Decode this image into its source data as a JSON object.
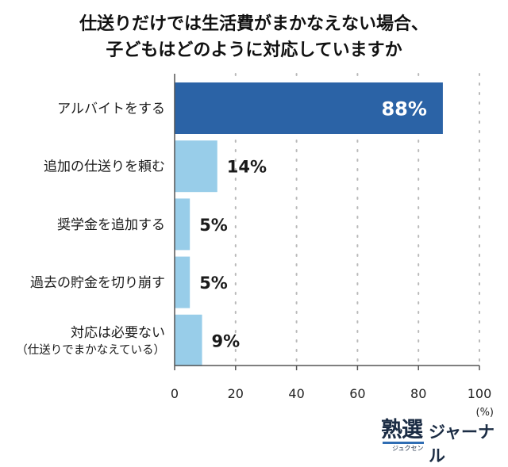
{
  "title_line1": "仕送りだけでは生活費がまかなえない場合、",
  "title_line2": "子どもはどのように対応していますか",
  "chart_data": {
    "type": "bar",
    "orientation": "horizontal",
    "categories": [
      [
        "アルバイトをする"
      ],
      [
        "追加の仕送りを頼む"
      ],
      [
        "奨学金を追加する"
      ],
      [
        "過去の貯金を切り崩す"
      ],
      [
        "対応は必要ない",
        "（仕送りでまかなえている）"
      ]
    ],
    "values": [
      88,
      14,
      5,
      5,
      9
    ],
    "data_labels": [
      "88%",
      "14%",
      "5%",
      "5%",
      "9%"
    ],
    "xlim": [
      0,
      100
    ],
    "xticks": [
      0,
      20,
      40,
      60,
      80,
      100
    ],
    "unit_label": "(%)",
    "colors": {
      "highlight": "#2b63a6",
      "bar": "#98cde9",
      "highlight_label": "#ffffff",
      "label": "#1a1a1a"
    },
    "grid": "dotted vertical at ticks"
  },
  "logo": {
    "main": "熟選",
    "sub": "ジュクセン",
    "journal": "ジャーナル"
  }
}
